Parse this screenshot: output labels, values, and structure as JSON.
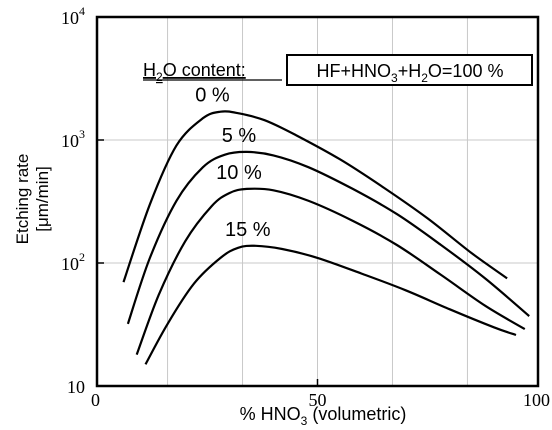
{
  "chart_data": {
    "type": "line",
    "xlabel_parts": {
      "pre": "% HNO",
      "sub": "3",
      "post": " (volumetric)"
    },
    "ylabel_lines": [
      "Etching rate",
      "[μm/min]"
    ],
    "xlim": [
      0,
      100
    ],
    "ylim": [
      10,
      10000
    ],
    "yscale": "log",
    "grid": true,
    "x_ticks": [
      {
        "value": 0,
        "label": "0"
      },
      {
        "value": 50,
        "label": "50"
      },
      {
        "value": 100,
        "label": "100"
      }
    ],
    "y_ticks": [
      {
        "value": 10,
        "label": "10",
        "exp": ""
      },
      {
        "value": 100,
        "label": "10",
        "exp": "2"
      },
      {
        "value": 1000,
        "label": "10",
        "exp": "3"
      },
      {
        "value": 10000,
        "label": "10",
        "exp": "4"
      }
    ],
    "legend_title_parts": {
      "pre": "H",
      "sub": "2",
      "post": "O content:"
    },
    "annotation_box_parts": [
      {
        "t": "HF+HNO",
        "sub": false
      },
      {
        "t": "3",
        "sub": true
      },
      {
        "t": "+H",
        "sub": false
      },
      {
        "t": "2",
        "sub": true
      },
      {
        "t": "O=100 %",
        "sub": false
      }
    ],
    "series": [
      {
        "name": "0 %",
        "x": [
          6,
          12,
          18,
          24,
          28,
          32,
          38,
          45,
          55,
          65,
          75,
          85,
          93
        ],
        "y": [
          70,
          300,
          900,
          1500,
          1700,
          1650,
          1450,
          1100,
          700,
          410,
          230,
          120,
          75
        ]
      },
      {
        "name": "5 %",
        "x": [
          7,
          12,
          18,
          24,
          29,
          34,
          40,
          48,
          58,
          68,
          78,
          88,
          98
        ],
        "y": [
          32,
          110,
          320,
          600,
          760,
          800,
          750,
          600,
          400,
          250,
          140,
          75,
          37
        ]
      },
      {
        "name": "10 %",
        "x": [
          9,
          14,
          20,
          26,
          30,
          34,
          40,
          48,
          58,
          68,
          78,
          88,
          97
        ],
        "y": [
          18,
          55,
          150,
          290,
          370,
          400,
          390,
          320,
          220,
          140,
          80,
          45,
          29
        ]
      },
      {
        "name": "15 %",
        "x": [
          11,
          16,
          22,
          28,
          32,
          36,
          42,
          50,
          60,
          70,
          80,
          90,
          95
        ],
        "y": [
          15,
          32,
          68,
          110,
          133,
          138,
          130,
          110,
          82,
          60,
          42,
          30,
          26
        ]
      }
    ]
  }
}
